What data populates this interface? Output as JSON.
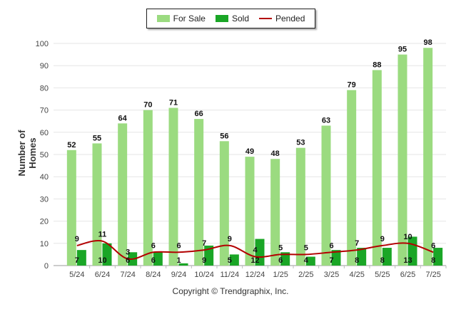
{
  "chart_data": {
    "type": "bar",
    "legend": {
      "position": "top-center",
      "items": [
        {
          "name": "For Sale",
          "color": "#9bdb80",
          "kind": "bar"
        },
        {
          "name": "Sold",
          "color": "#1aa626",
          "kind": "bar"
        },
        {
          "name": "Pended",
          "color": "#b30000",
          "kind": "line"
        }
      ]
    },
    "ylabel": "Number of Homes",
    "xlabel": "",
    "ylim": [
      0,
      100
    ],
    "yticks": [
      0,
      10,
      20,
      30,
      40,
      50,
      60,
      70,
      80,
      90,
      100
    ],
    "grid": true,
    "categories": [
      "5/24",
      "6/24",
      "7/24",
      "8/24",
      "9/24",
      "10/24",
      "11/24",
      "12/24",
      "1/25",
      "2/25",
      "3/25",
      "4/25",
      "5/25",
      "6/25",
      "7/25"
    ],
    "series": [
      {
        "name": "For Sale",
        "type": "bar",
        "values": [
          52,
          55,
          64,
          70,
          71,
          66,
          56,
          49,
          48,
          53,
          63,
          79,
          88,
          95,
          98
        ]
      },
      {
        "name": "Sold",
        "type": "bar",
        "values": [
          7,
          10,
          6,
          6,
          1,
          9,
          5,
          12,
          6,
          4,
          7,
          8,
          8,
          13,
          8
        ]
      },
      {
        "name": "Pended",
        "type": "line",
        "values": [
          9,
          11,
          3,
          6,
          6,
          7,
          9,
          4,
          5,
          5,
          6,
          7,
          9,
          10,
          6
        ]
      }
    ]
  },
  "footer": {
    "copyright": "Copyright © Trendgraphix, Inc."
  },
  "colors": {
    "for_sale": "#9bdb80",
    "sold": "#1aa626",
    "pended": "#b30000"
  }
}
